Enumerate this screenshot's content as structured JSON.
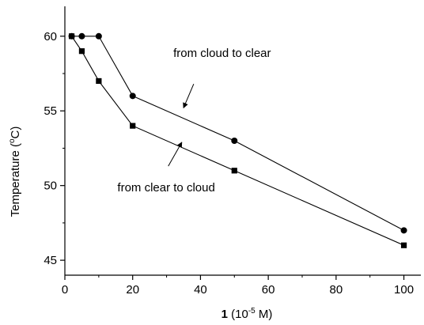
{
  "chart_data": {
    "type": "line",
    "title": "",
    "xlabel": {
      "bold_part": "1",
      "rest_prefix": " (10",
      "superscript": "-5",
      "rest_suffix": " M)"
    },
    "ylabel": {
      "prefix": "Temperature (",
      "superscript": "o",
      "suffix": "C)"
    },
    "xlim": [
      0,
      105
    ],
    "ylim": [
      44,
      62
    ],
    "x_ticks": [
      0,
      20,
      40,
      60,
      80,
      100
    ],
    "x_tick_labels": [
      "0",
      "20",
      "40",
      "60",
      "80",
      "100"
    ],
    "y_ticks": [
      45,
      50,
      55,
      60
    ],
    "y_tick_labels": [
      "45",
      "50",
      "55",
      "60"
    ],
    "grid": false,
    "legend": "none",
    "series": [
      {
        "marker": "circle",
        "color": "#000000",
        "points": [
          {
            "x": 2,
            "y": 60
          },
          {
            "x": 5,
            "y": 60
          },
          {
            "x": 10,
            "y": 60
          },
          {
            "x": 20,
            "y": 56
          },
          {
            "x": 50,
            "y": 53
          },
          {
            "x": 100,
            "y": 47
          }
        ]
      },
      {
        "marker": "square",
        "color": "#000000",
        "points": [
          {
            "x": 2,
            "y": 60
          },
          {
            "x": 5,
            "y": 59
          },
          {
            "x": 10,
            "y": 57
          },
          {
            "x": 20,
            "y": 54
          },
          {
            "x": 50,
            "y": 51
          },
          {
            "x": 100,
            "y": 46
          }
        ]
      }
    ],
    "annotations": [
      {
        "text": "from cloud to clear",
        "text_anchor": {
          "x": 32,
          "y": 58.6
        },
        "arrow_from": {
          "x": 38,
          "y": 56.8
        },
        "arrow_to": {
          "x": 35,
          "y": 55.2
        }
      },
      {
        "text": "from clear to cloud",
        "text_anchor": {
          "x": 15.5,
          "y": 49.6
        },
        "arrow_from": {
          "x": 30.5,
          "y": 51.3
        },
        "arrow_to": {
          "x": 34.5,
          "y": 52.9
        }
      }
    ]
  }
}
